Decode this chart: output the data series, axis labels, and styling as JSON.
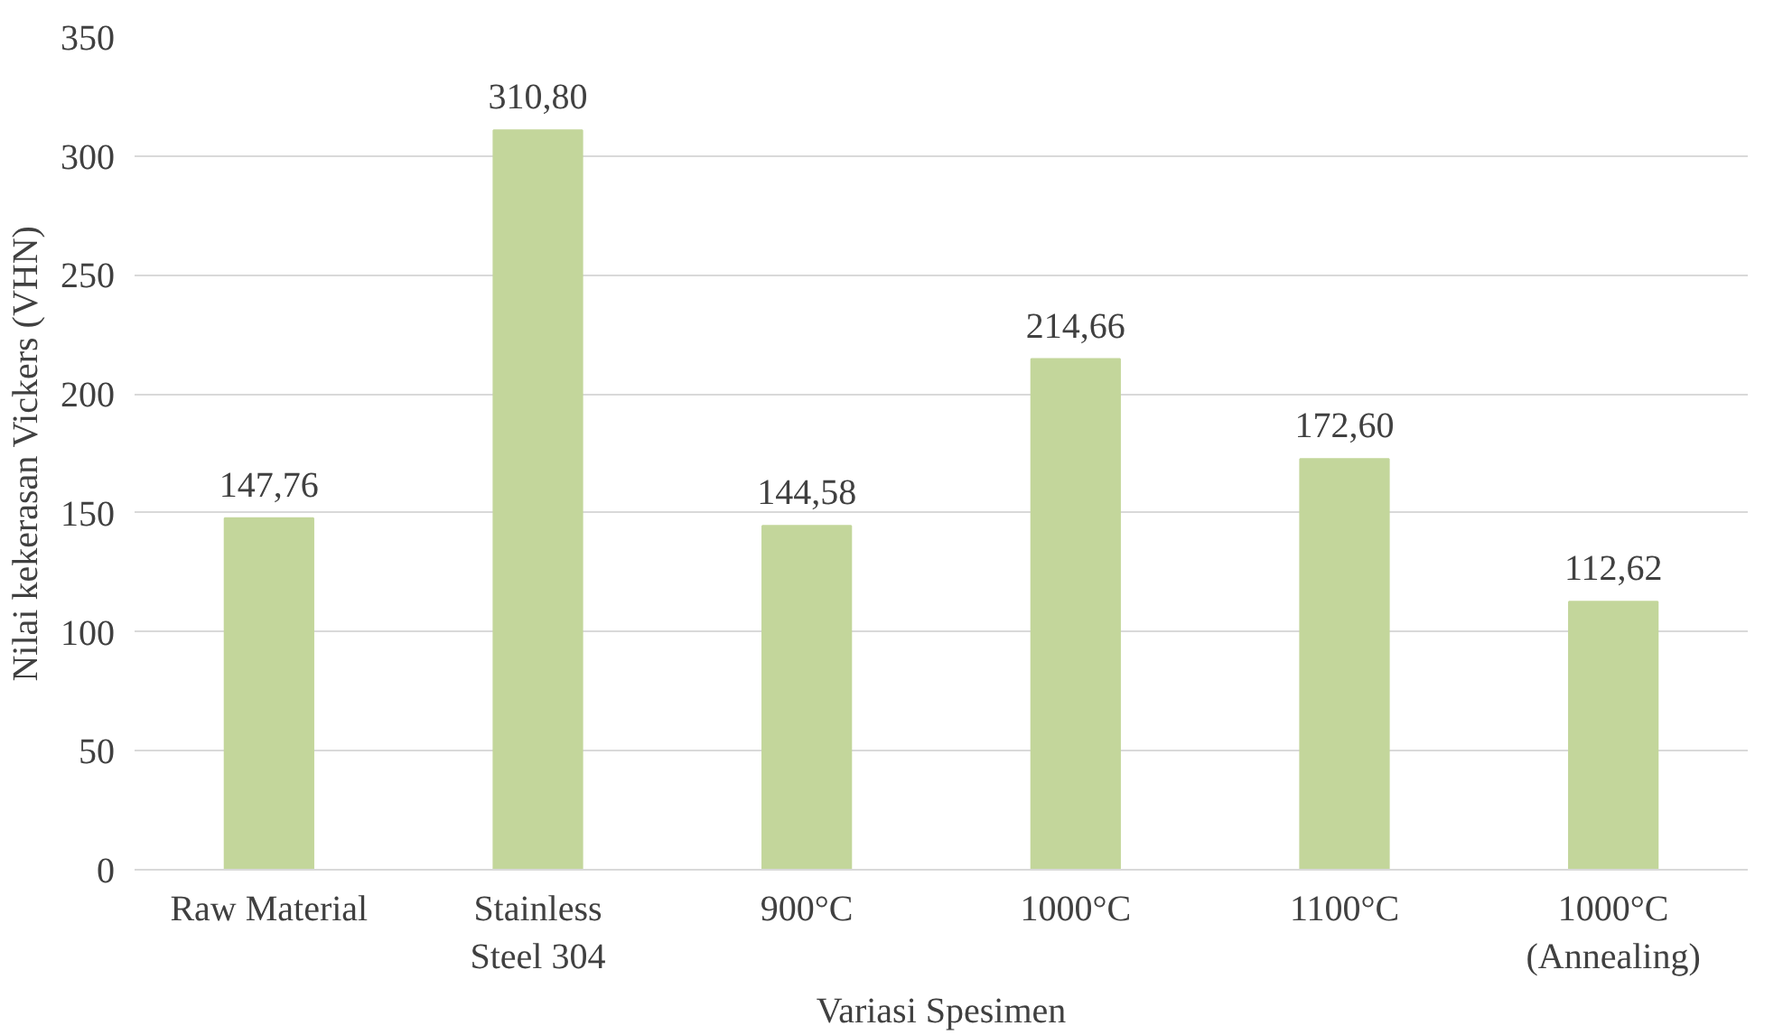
{
  "chart_data": {
    "type": "bar",
    "xlabel": "Variasi Spesimen",
    "ylabel": "Nilai kekerasan Vickers (VHN)",
    "categories": [
      "Raw Material",
      "Stainless\nSteel 304",
      "900°C",
      "1000°C",
      "1100°C",
      "1000°C\n(Annealing)"
    ],
    "values": [
      147.76,
      310.8,
      144.58,
      214.66,
      172.6,
      112.62
    ],
    "value_labels": [
      "147,76",
      "310,80",
      "144,58",
      "214,66",
      "172,60",
      "112,62"
    ],
    "color": "#c3d69b",
    "ylim": [
      0,
      350
    ],
    "yticks": [
      0,
      50,
      100,
      150,
      200,
      250,
      300,
      350
    ],
    "grid": "y"
  }
}
